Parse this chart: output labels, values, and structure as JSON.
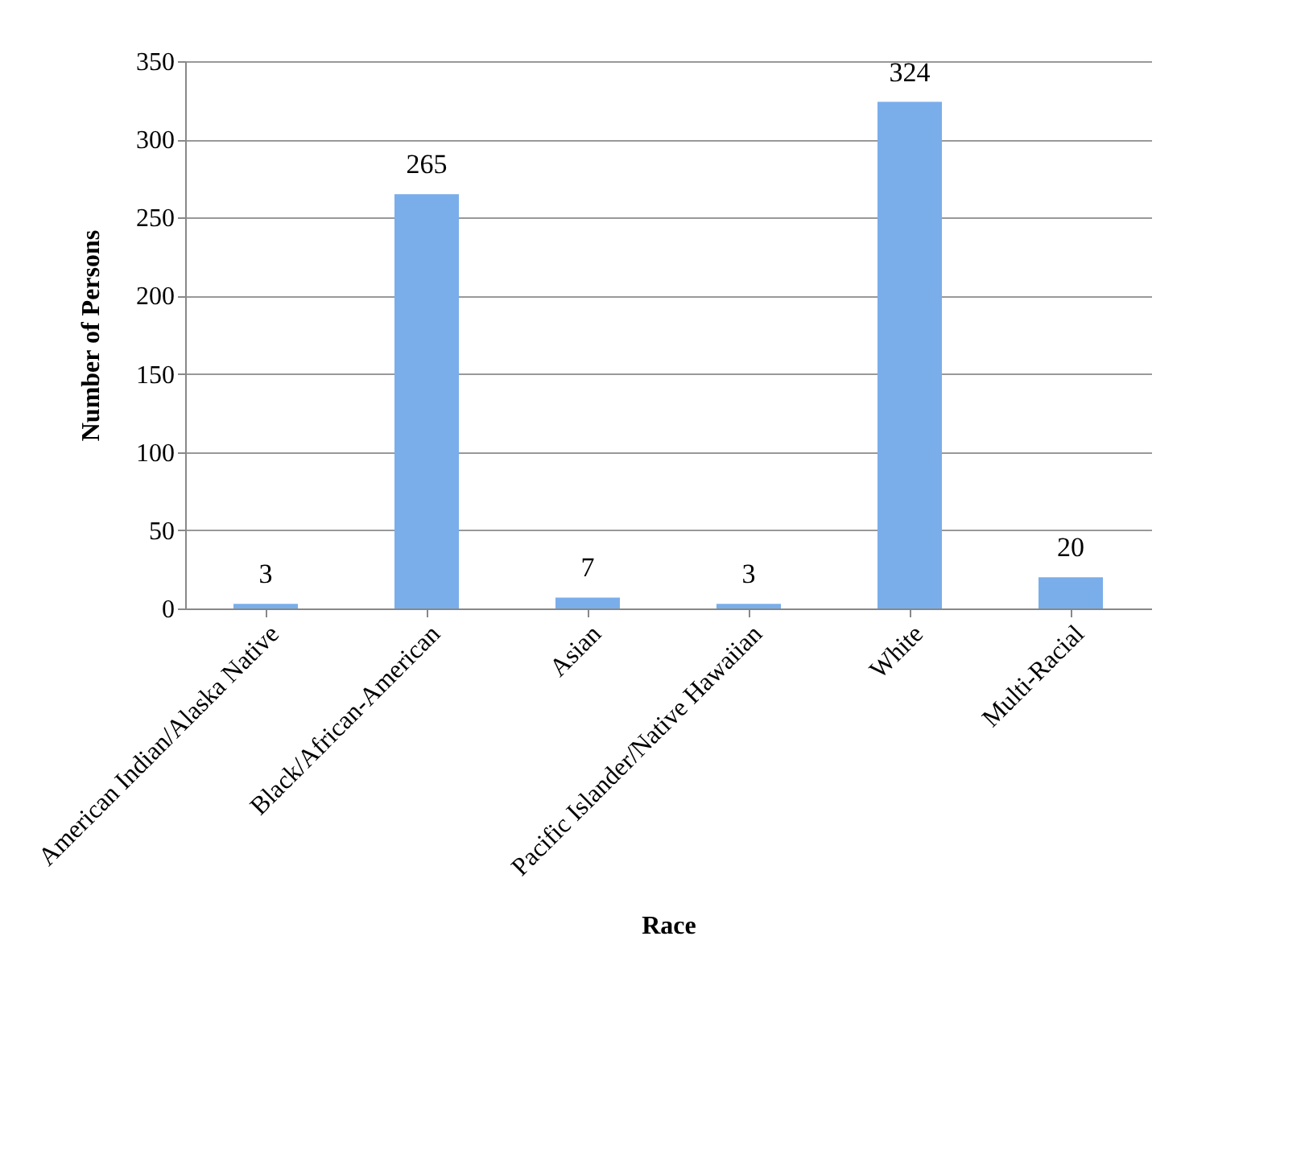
{
  "chart_data": {
    "type": "bar",
    "xlabel": "Race",
    "ylabel": "Number of Persons",
    "categories": [
      "American Indian/Alaska Native",
      "Black/African-American",
      "Asian",
      "Pacific Islander/Native Hawaiian",
      "White",
      "Multi-Racial"
    ],
    "values": [
      3,
      265,
      7,
      3,
      324,
      20
    ],
    "color": "#7aaeea",
    "ylim": [
      0,
      350
    ],
    "yticks": [
      0,
      50,
      100,
      150,
      200,
      250,
      300,
      350
    ],
    "grid": "y",
    "data_labels": true
  }
}
